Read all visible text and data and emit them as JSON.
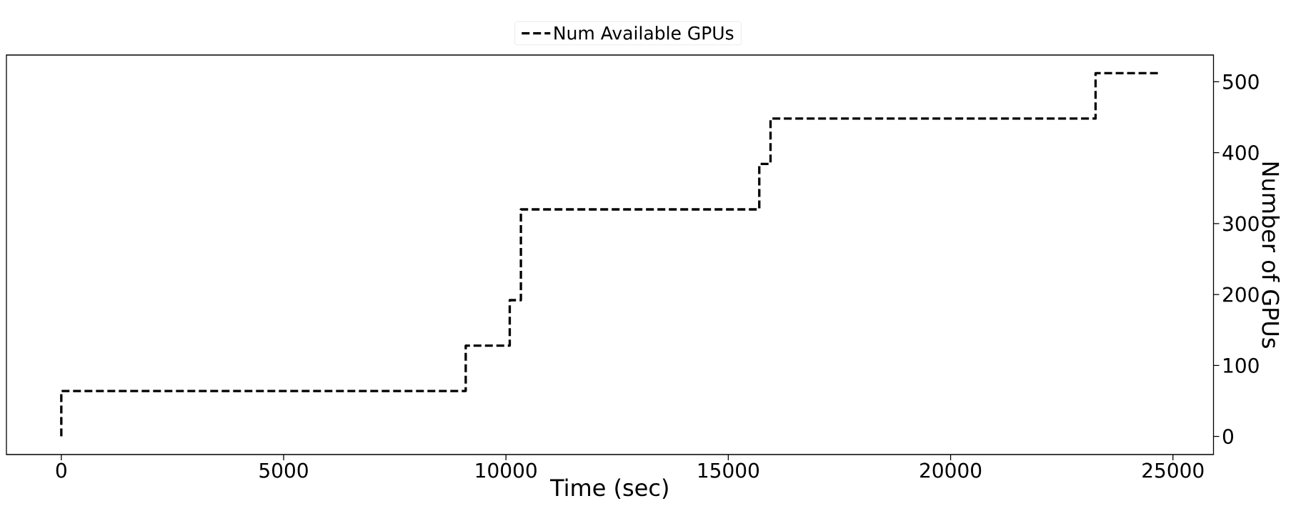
{
  "chart_data": {
    "type": "step",
    "xlabel": "Time (sec)",
    "ylabel": "Number of GPUs",
    "x": [
      0,
      0,
      9095,
      10085,
      10336,
      15697,
      15950,
      23260,
      24678
    ],
    "series": [
      {
        "name": "Num Available GPUs",
        "color": "#000000",
        "values": [
          0,
          64,
          128,
          192,
          320,
          384,
          448,
          512,
          512
        ]
      }
    ],
    "xlim": [
      -1234,
      25912
    ],
    "ylim": [
      -25.6,
      537.6
    ],
    "xticks": [
      0,
      5000,
      10000,
      15000,
      20000,
      25000
    ],
    "yticks": [
      0,
      100,
      200,
      300,
      400,
      500
    ],
    "legend": "top",
    "line_style": "dashed",
    "marker": "none"
  }
}
